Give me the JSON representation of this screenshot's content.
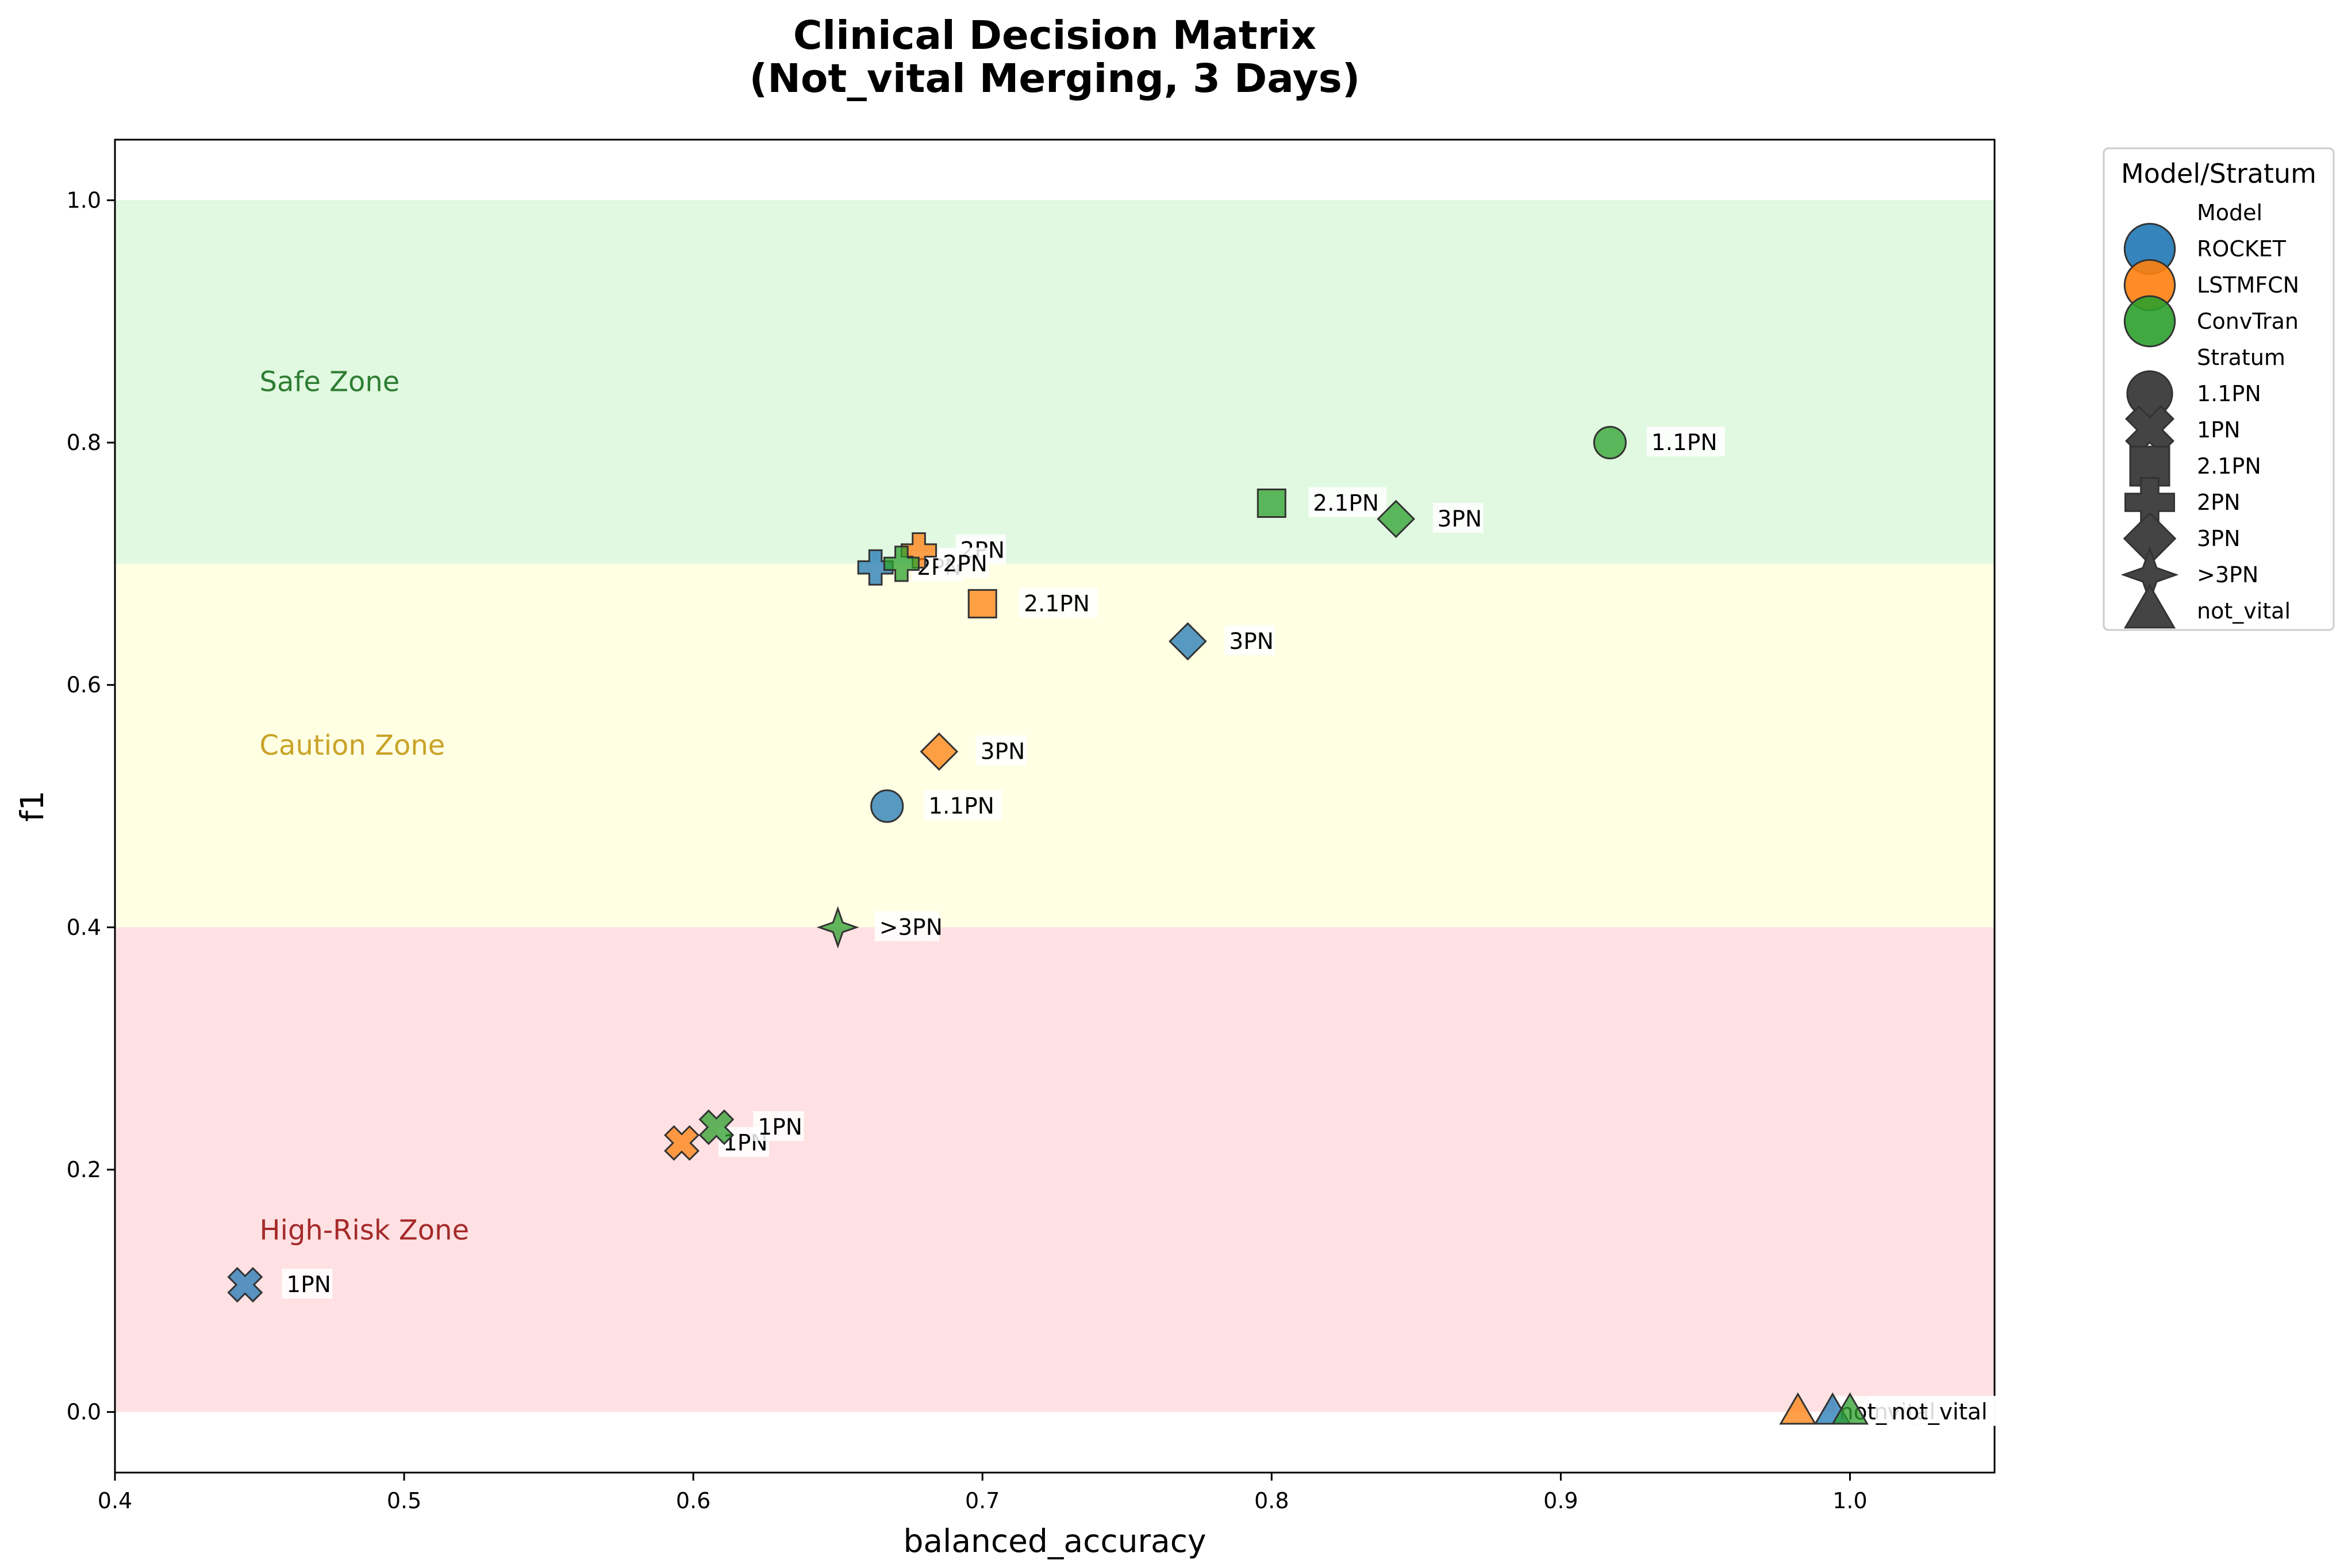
{
  "chart_data": {
    "type": "scatter",
    "title": [
      "Clinical Decision Matrix",
      "(Not_vital Merging, 3 Days)"
    ],
    "xlabel": "balanced_accuracy",
    "ylabel": "f1",
    "xlim": [
      0.4,
      1.05
    ],
    "ylim": [
      -0.05,
      1.05
    ],
    "xticks": [
      0.4,
      0.5,
      0.6,
      0.7,
      0.8,
      0.9,
      1.0
    ],
    "yticks": [
      0.0,
      0.2,
      0.4,
      0.6,
      0.8,
      1.0
    ],
    "xtick_labels": [
      "0.4",
      "0.5",
      "0.6",
      "0.7",
      "0.8",
      "0.9",
      "1.0"
    ],
    "ytick_labels": [
      "0.0",
      "0.2",
      "0.4",
      "0.6",
      "0.8",
      "1.0"
    ],
    "grid": false,
    "zones": [
      {
        "label": "Safe Zone",
        "y0": 0.7,
        "y1": 1.0,
        "fill": "#e1f8e1",
        "text_color": "#2e7d32"
      },
      {
        "label": "Caution Zone",
        "y0": 0.4,
        "y1": 0.7,
        "fill": "#feffe3",
        "text_color": "#c9a227"
      },
      {
        "label": "High-Risk Zone",
        "y0": 0.0,
        "y1": 0.4,
        "fill": "#ffe1e3",
        "text_color": "#a52a2a"
      }
    ],
    "model_colors": {
      "ROCKET": "#1f77b4",
      "LSTMFCN": "#ff7f0e",
      "ConvTran": "#2ca02c"
    },
    "stratum_markers": {
      "1.1PN": "circle",
      "1PN": "x",
      "2.1PN": "square",
      "2PN": "plus",
      "3PN": "diamond",
      ">3PN": "star4",
      "not_vital": "triangle"
    },
    "points": [
      {
        "model": "ROCKET",
        "stratum": "1PN",
        "x": 0.445,
        "y": 0.105
      },
      {
        "model": "ROCKET",
        "stratum": "1.1PN",
        "x": 0.667,
        "y": 0.5
      },
      {
        "model": "ROCKET",
        "stratum": "2PN",
        "x": 0.663,
        "y": 0.697
      },
      {
        "model": "ROCKET",
        "stratum": "3PN",
        "x": 0.771,
        "y": 0.636
      },
      {
        "model": "ROCKET",
        "stratum": "not_vital",
        "x": 0.994,
        "y": 0.0
      },
      {
        "model": "LSTMFCN",
        "stratum": "1PN",
        "x": 0.596,
        "y": 0.222
      },
      {
        "model": "LSTMFCN",
        "stratum": "2.1PN",
        "x": 0.7,
        "y": 0.667
      },
      {
        "model": "LSTMFCN",
        "stratum": "2PN",
        "x": 0.678,
        "y": 0.711
      },
      {
        "model": "LSTMFCN",
        "stratum": "3PN",
        "x": 0.685,
        "y": 0.545
      },
      {
        "model": "LSTMFCN",
        "stratum": "not_vital",
        "x": 0.982,
        "y": 0.0
      },
      {
        "model": "ConvTran",
        "stratum": "1.1PN",
        "x": 0.917,
        "y": 0.8
      },
      {
        "model": "ConvTran",
        "stratum": "1PN",
        "x": 0.608,
        "y": 0.235
      },
      {
        "model": "ConvTran",
        "stratum": "2.1PN",
        "x": 0.8,
        "y": 0.75
      },
      {
        "model": "ConvTran",
        "stratum": "2PN",
        "x": 0.672,
        "y": 0.7
      },
      {
        "model": "ConvTran",
        "stratum": "3PN",
        "x": 0.843,
        "y": 0.737
      },
      {
        "model": "ConvTran",
        "stratum": ">3PN",
        "x": 0.65,
        "y": 0.4
      },
      {
        "model": "ConvTran",
        "stratum": "not_vital",
        "x": 1.0,
        "y": 0.0
      }
    ],
    "legend": {
      "title": "Model/Stratum",
      "placement": "outside-right-top",
      "model_header": "Model",
      "models": [
        "ROCKET",
        "LSTMFCN",
        "ConvTran"
      ],
      "stratum_header": "Stratum",
      "strata": [
        "1.1PN",
        "1PN",
        "2.1PN",
        "2PN",
        "3PN",
        ">3PN",
        "not_vital"
      ]
    }
  }
}
